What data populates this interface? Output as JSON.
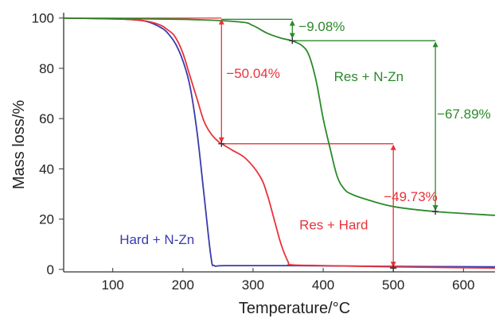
{
  "chart_data": {
    "type": "line",
    "xlabel": "Temperature/°C",
    "ylabel": "Mass loss/%",
    "xlim": [
      30,
      645
    ],
    "ylim": [
      -1,
      101.5
    ],
    "xticks": [
      100,
      200,
      300,
      400,
      500,
      600
    ],
    "yticks": [
      0,
      20,
      40,
      60,
      80,
      100
    ],
    "grid": false,
    "colors": {
      "hard_nzn": "#3a3aae",
      "res_hard": "#e8333a",
      "res_nzn": "#2a8a2a",
      "axis": "#333333"
    },
    "series": [
      {
        "name": "Hard + N-Zn",
        "x": [
          30,
          120,
          150,
          170,
          180,
          190,
          200,
          210,
          220,
          230,
          240,
          245,
          260,
          350,
          500,
          645
        ],
        "y": [
          100,
          99.5,
          98.5,
          96,
          93.5,
          89.5,
          83,
          73,
          55,
          30,
          5,
          1.5,
          1.5,
          1.5,
          1.2,
          1.0
        ]
      },
      {
        "name": "Res + Hard",
        "x": [
          30,
          120,
          160,
          180,
          190,
          200,
          210,
          220,
          230,
          240,
          250,
          255,
          270,
          290,
          310,
          320,
          330,
          340,
          350,
          355,
          400,
          500,
          645
        ],
        "y": [
          100,
          99.5,
          98,
          95,
          92,
          86,
          77,
          68,
          59,
          54,
          51,
          50,
          47.5,
          44,
          37,
          30,
          20,
          10,
          3,
          1.8,
          1.5,
          1.0,
          0.5
        ]
      },
      {
        "name": "Res + N-Zn",
        "x": [
          30,
          200,
          280,
          300,
          320,
          340,
          355,
          370,
          380,
          390,
          400,
          410,
          420,
          430,
          440,
          460,
          500,
          560,
          645
        ],
        "y": [
          100,
          99.5,
          98.5,
          97,
          94,
          92,
          91,
          89,
          85,
          75,
          60,
          48,
          37,
          32,
          30,
          28,
          25,
          23,
          21.5
        ]
      }
    ],
    "annotations": [
      {
        "text": "−9.08%",
        "color": "green",
        "x": 356,
        "y_from": 99.5,
        "y_to": 91.5
      },
      {
        "text": "−50.04%",
        "color": "red",
        "x": 255,
        "y_from": 100,
        "y_to": 50
      },
      {
        "text": "−67.89%",
        "color": "green",
        "x": 560,
        "y_from": 91,
        "y_to": 23
      },
      {
        "text": "−49.73%",
        "color": "red",
        "x": 500,
        "y_from": 50,
        "y_to": 0.5
      }
    ],
    "reference_lines": [
      {
        "color": "red",
        "y": 100,
        "x_from": 70,
        "x_to": 255
      },
      {
        "color": "green",
        "y": 99.5,
        "x_from": 255,
        "x_to": 356
      },
      {
        "color": "green",
        "y": 91,
        "x_from": 356,
        "x_to": 560
      },
      {
        "color": "red",
        "y": 50,
        "x_from": 255,
        "x_to": 500
      }
    ],
    "markers": [
      {
        "color": "red",
        "x": 255,
        "y": 50
      },
      {
        "color": "green",
        "x": 356,
        "y": 91
      },
      {
        "color": "green",
        "x": 560,
        "y": 23
      },
      {
        "color": "blue",
        "x": 500,
        "y": 0.5
      }
    ],
    "series_labels": [
      {
        "text": "Res + N-Zn",
        "color": "green",
        "x": 465,
        "y": 75
      },
      {
        "text": "Res + Hard",
        "color": "red",
        "x": 415,
        "y": 16
      },
      {
        "text": "Hard + N-Zn",
        "color": "blue",
        "x": 163,
        "y": 10
      }
    ]
  }
}
